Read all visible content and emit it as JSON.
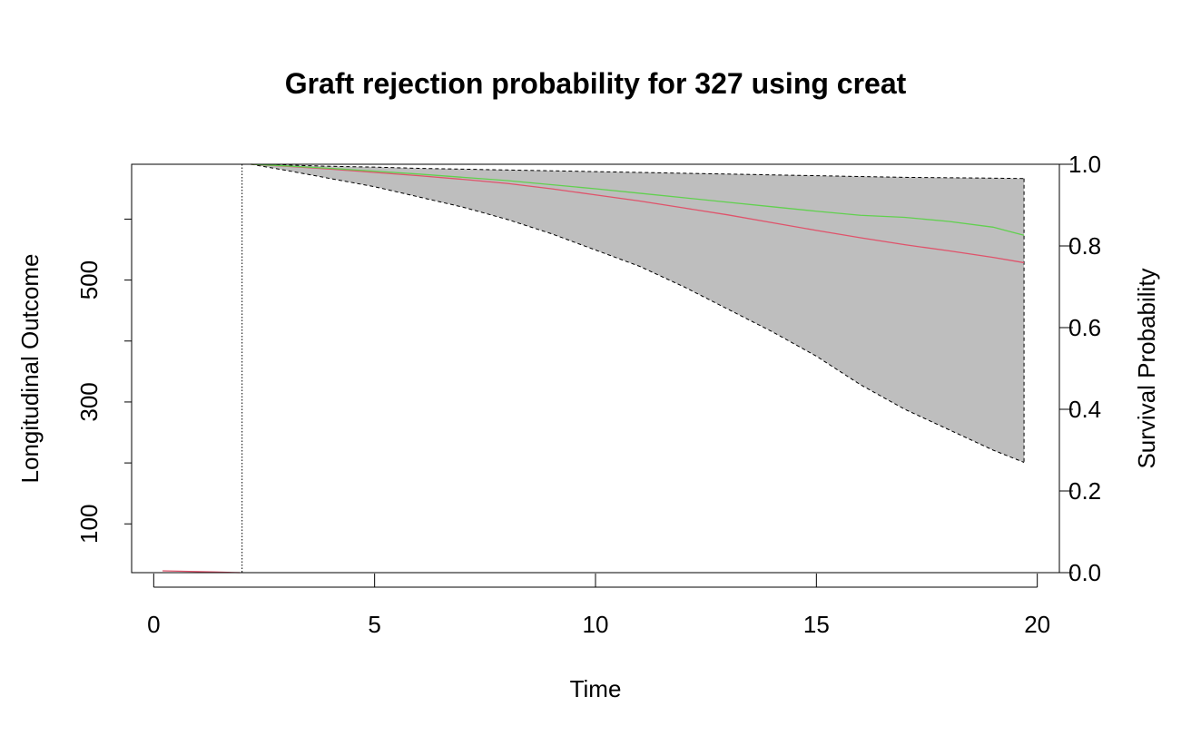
{
  "chart_data": {
    "type": "line",
    "title": "Graft rejection probability for 327 using creat",
    "xlabel": "Time",
    "ylabel_left": "Longitudinal Outcome",
    "ylabel_right": "Survival Probability",
    "xlim": [
      -0.5,
      20.5
    ],
    "ylim_left": [
      20,
      690
    ],
    "ylim_right": [
      0,
      1
    ],
    "x_ticks": [
      0,
      5,
      10,
      15,
      20
    ],
    "y_left_ticks": [
      100,
      200,
      300,
      400,
      500,
      600
    ],
    "y_left_tick_labels": [
      "100",
      "",
      "300",
      "",
      "500",
      ""
    ],
    "y_right_ticks": [
      0.0,
      0.2,
      0.4,
      0.6,
      0.8,
      1.0
    ],
    "y_right_tick_labels": [
      "0.0",
      "0.2",
      "0.4",
      "0.6",
      "0.8",
      "1.0"
    ],
    "last_visit_time": 2.0,
    "longitudinal": {
      "color": "#DF536B",
      "x": [
        0.2,
        0.8,
        1.4,
        1.95
      ],
      "y": [
        23,
        22,
        21,
        20
      ]
    },
    "survival_ci": {
      "fill": "#BEBEBE",
      "x": [
        2.2,
        3,
        4,
        5,
        6,
        7,
        8,
        9,
        10,
        11,
        12,
        13,
        14,
        15,
        16,
        17,
        18,
        19,
        19.7
      ],
      "lower": [
        1.0,
        0.985,
        0.965,
        0.945,
        0.92,
        0.895,
        0.865,
        0.83,
        0.79,
        0.75,
        0.7,
        0.645,
        0.59,
        0.53,
        0.46,
        0.4,
        0.35,
        0.3,
        0.27
      ],
      "upper": [
        1.0,
        0.998,
        0.995,
        0.993,
        0.99,
        0.988,
        0.986,
        0.984,
        0.982,
        0.98,
        0.978,
        0.976,
        0.974,
        0.972,
        0.97,
        0.968,
        0.967,
        0.966,
        0.965
      ]
    },
    "series": [
      {
        "color": "#DF536B",
        "x": [
          2.2,
          3,
          4,
          5,
          6,
          7,
          8,
          9,
          10,
          11,
          12,
          13,
          14,
          15,
          16,
          17,
          18,
          19,
          19.7
        ],
        "y": [
          1.0,
          0.995,
          0.988,
          0.98,
          0.972,
          0.963,
          0.953,
          0.94,
          0.925,
          0.91,
          0.893,
          0.876,
          0.857,
          0.838,
          0.82,
          0.803,
          0.788,
          0.772,
          0.759
        ]
      },
      {
        "color": "#61D04F",
        "x": [
          2.2,
          3,
          4,
          5,
          6,
          7,
          8,
          9,
          10,
          11,
          12,
          13,
          14,
          15,
          16,
          17,
          18,
          19,
          19.7
        ],
        "y": [
          1.0,
          0.996,
          0.99,
          0.983,
          0.976,
          0.968,
          0.96,
          0.95,
          0.94,
          0.929,
          0.918,
          0.907,
          0.896,
          0.885,
          0.875,
          0.87,
          0.86,
          0.846,
          0.826
        ]
      }
    ]
  }
}
